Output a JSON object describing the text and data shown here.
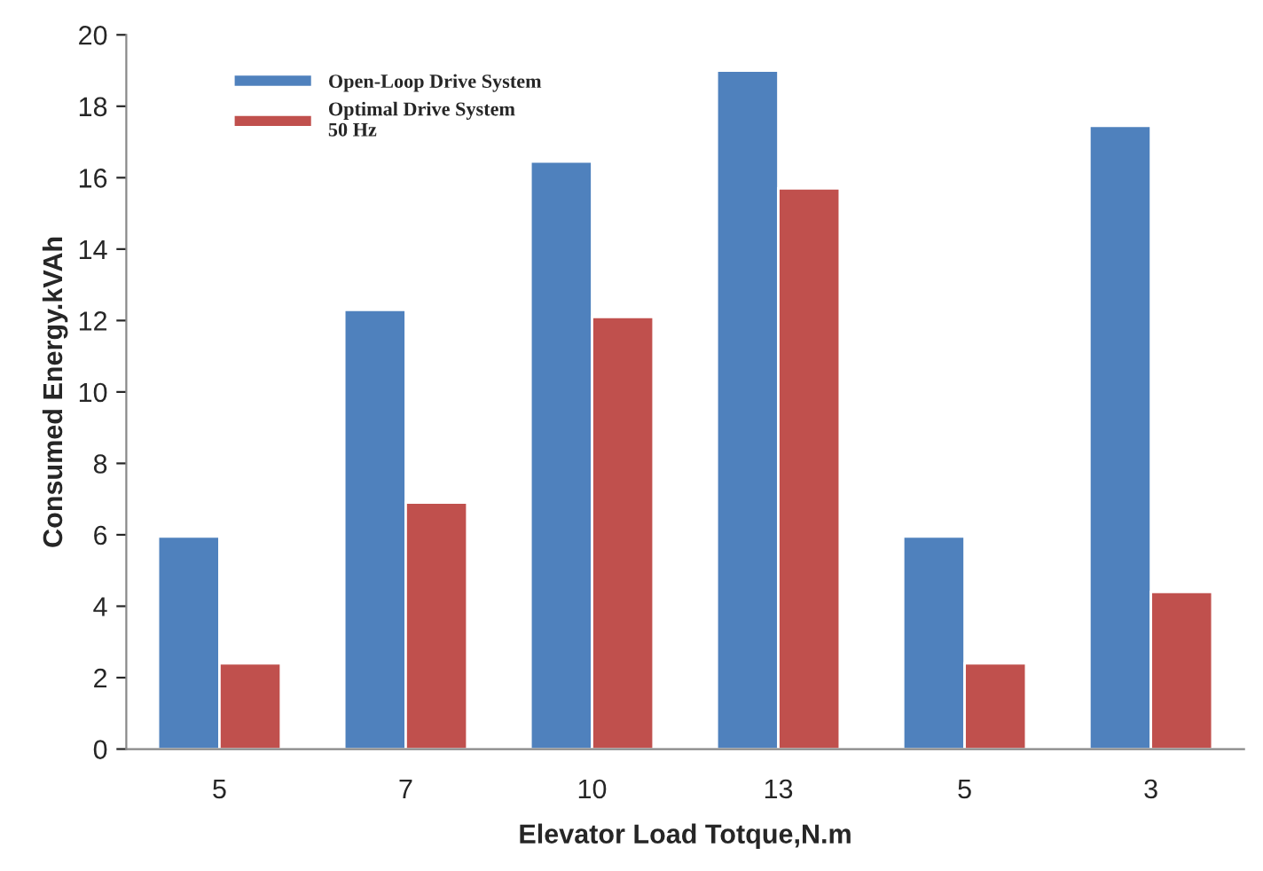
{
  "chart_data": {
    "type": "bar",
    "xlabel": "Elevator Load Totque,N.m",
    "ylabel": "Consumed Energy.kVAh",
    "categories": [
      "5",
      "7",
      "10",
      "13",
      "5",
      "3"
    ],
    "series": [
      {
        "name": "Open-Loop Drive System",
        "color": "#4f81bd",
        "values": [
          5.95,
          12.3,
          16.45,
          19.0,
          5.95,
          17.45
        ]
      },
      {
        "name": "Optimal Drive System\n50 Hz",
        "color": "#c0504d",
        "values": [
          2.4,
          6.9,
          12.1,
          15.7,
          2.4,
          4.4
        ]
      }
    ],
    "ylim": [
      0,
      20
    ],
    "yticks": [
      0,
      2,
      4,
      6,
      8,
      10,
      12,
      14,
      16,
      18,
      20
    ],
    "grid": false,
    "legend": "top left"
  }
}
